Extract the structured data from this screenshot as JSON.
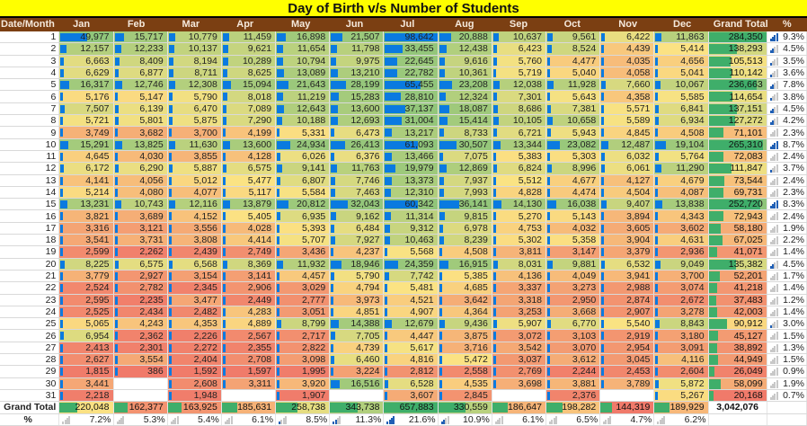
{
  "title": "Day of Birth v/s Number of Students",
  "columns": [
    "Date/Month",
    "Jan",
    "Feb",
    "Mar",
    "Apr",
    "May",
    "Jun",
    "Jul",
    "Aug",
    "Sep",
    "Oct",
    "Nov",
    "Dec",
    "Grand Total",
    "%"
  ],
  "rows": [
    {
      "day": "1",
      "values": [
        "49,977",
        "15,717",
        "10,779",
        "11,459",
        "16,898",
        "21,507",
        "98,642",
        "20,888",
        "10,637",
        "9,561",
        "6,422",
        "11,863"
      ],
      "total": "284,350",
      "pct": "9.3%"
    },
    {
      "day": "2",
      "values": [
        "12,157",
        "12,233",
        "10,137",
        "9,621",
        "11,654",
        "11,798",
        "33,455",
        "12,438",
        "6,423",
        "8,524",
        "4,439",
        "5,414"
      ],
      "total": "138,293",
      "pct": "4.5%"
    },
    {
      "day": "3",
      "values": [
        "6,663",
        "8,409",
        "8,194",
        "10,289",
        "10,794",
        "9,975",
        "22,645",
        "9,616",
        "5,760",
        "4,477",
        "4,035",
        "4,656"
      ],
      "total": "105,513",
      "pct": "3.5%"
    },
    {
      "day": "4",
      "values": [
        "6,629",
        "6,877",
        "8,711",
        "8,625",
        "13,089",
        "13,210",
        "22,782",
        "10,361",
        "5,719",
        "5,040",
        "4,058",
        "5,041"
      ],
      "total": "110,142",
      "pct": "3.6%"
    },
    {
      "day": "5",
      "values": [
        "16,317",
        "12,746",
        "12,308",
        "15,094",
        "21,643",
        "28,199",
        "65,455",
        "23,208",
        "12,038",
        "11,928",
        "7,660",
        "10,067"
      ],
      "total": "236,663",
      "pct": "7.8%"
    },
    {
      "day": "6",
      "values": [
        "5,176",
        "5,147",
        "5,790",
        "8,018",
        "11,219",
        "15,283",
        "28,810",
        "12,324",
        "7,301",
        "5,643",
        "4,358",
        "5,585"
      ],
      "total": "114,654",
      "pct": "3.8%"
    },
    {
      "day": "7",
      "values": [
        "7,507",
        "6,139",
        "6,470",
        "7,089",
        "12,643",
        "13,600",
        "37,137",
        "18,087",
        "8,686",
        "7,381",
        "5,571",
        "6,841"
      ],
      "total": "137,151",
      "pct": "4.5%"
    },
    {
      "day": "8",
      "values": [
        "5,721",
        "5,801",
        "5,875",
        "7,290",
        "10,188",
        "12,693",
        "31,004",
        "15,414",
        "10,105",
        "10,658",
        "5,589",
        "6,934"
      ],
      "total": "127,272",
      "pct": "4.2%"
    },
    {
      "day": "9",
      "values": [
        "3,749",
        "3,682",
        "3,700",
        "4,199",
        "5,331",
        "6,473",
        "13,217",
        "8,733",
        "6,721",
        "5,943",
        "4,845",
        "4,508"
      ],
      "total": "71,101",
      "pct": "2.3%"
    },
    {
      "day": "10",
      "values": [
        "15,291",
        "13,825",
        "11,630",
        "13,600",
        "24,934",
        "26,413",
        "61,093",
        "30,507",
        "13,344",
        "23,082",
        "12,487",
        "19,104"
      ],
      "total": "265,310",
      "pct": "8.7%"
    },
    {
      "day": "11",
      "values": [
        "4,645",
        "4,030",
        "3,855",
        "4,128",
        "6,026",
        "6,376",
        "13,466",
        "7,075",
        "5,383",
        "5,303",
        "6,032",
        "5,764"
      ],
      "total": "72,083",
      "pct": "2.4%"
    },
    {
      "day": "12",
      "values": [
        "6,172",
        "6,290",
        "5,887",
        "6,575",
        "9,141",
        "11,763",
        "19,979",
        "12,869",
        "6,824",
        "8,996",
        "6,061",
        "11,290"
      ],
      "total": "111,847",
      "pct": "3.7%"
    },
    {
      "day": "13",
      "values": [
        "4,141",
        "4,056",
        "5,012",
        "5,477",
        "6,807",
        "7,746",
        "13,373",
        "7,937",
        "5,512",
        "4,677",
        "4,127",
        "4,679"
      ],
      "total": "73,544",
      "pct": "2.4%"
    },
    {
      "day": "14",
      "values": [
        "5,214",
        "4,080",
        "4,077",
        "5,117",
        "5,584",
        "7,463",
        "12,310",
        "7,993",
        "4,828",
        "4,474",
        "4,504",
        "4,087"
      ],
      "total": "69,731",
      "pct": "2.3%"
    },
    {
      "day": "15",
      "values": [
        "13,231",
        "10,743",
        "12,116",
        "13,879",
        "20,812",
        "32,043",
        "60,342",
        "36,141",
        "14,130",
        "16,038",
        "9,407",
        "13,838"
      ],
      "total": "252,720",
      "pct": "8.3%"
    },
    {
      "day": "16",
      "values": [
        "3,821",
        "3,689",
        "4,152",
        "5,405",
        "6,935",
        "9,162",
        "11,314",
        "9,815",
        "5,270",
        "5,143",
        "3,894",
        "4,343"
      ],
      "total": "72,943",
      "pct": "2.4%"
    },
    {
      "day": "17",
      "values": [
        "3,316",
        "3,121",
        "3,556",
        "4,028",
        "5,393",
        "6,484",
        "9,312",
        "6,978",
        "4,753",
        "4,032",
        "3,605",
        "3,602"
      ],
      "total": "58,180",
      "pct": "1.9%"
    },
    {
      "day": "18",
      "values": [
        "3,541",
        "3,731",
        "3,808",
        "4,414",
        "5,707",
        "7,927",
        "10,463",
        "8,239",
        "5,302",
        "5,358",
        "3,904",
        "4,631"
      ],
      "total": "67,025",
      "pct": "2.2%"
    },
    {
      "day": "19",
      "values": [
        "2,599",
        "2,262",
        "2,439",
        "2,749",
        "3,436",
        "4,237",
        "5,568",
        "4,508",
        "3,811",
        "3,147",
        "3,379",
        "2,936"
      ],
      "total": "41,071",
      "pct": "1.4%"
    },
    {
      "day": "20",
      "values": [
        "8,225",
        "6,575",
        "6,568",
        "8,369",
        "11,932",
        "18,946",
        "24,359",
        "16,915",
        "8,031",
        "9,881",
        "6,532",
        "9,049"
      ],
      "total": "135,382",
      "pct": "4.5%"
    },
    {
      "day": "21",
      "values": [
        "3,779",
        "2,927",
        "3,154",
        "3,141",
        "4,457",
        "5,790",
        "7,742",
        "5,385",
        "4,136",
        "4,049",
        "3,941",
        "3,700"
      ],
      "total": "52,201",
      "pct": "1.7%"
    },
    {
      "day": "22",
      "values": [
        "2,524",
        "2,782",
        "2,345",
        "2,906",
        "3,029",
        "4,794",
        "5,481",
        "4,685",
        "3,337",
        "3,273",
        "2,988",
        "3,074"
      ],
      "total": "41,218",
      "pct": "1.4%"
    },
    {
      "day": "23",
      "values": [
        "2,595",
        "2,235",
        "3,477",
        "2,449",
        "2,777",
        "3,973",
        "4,521",
        "3,642",
        "3,318",
        "2,950",
        "2,874",
        "2,672"
      ],
      "total": "37,483",
      "pct": "1.2%"
    },
    {
      "day": "24",
      "values": [
        "2,525",
        "2,434",
        "2,482",
        "4,283",
        "3,051",
        "4,851",
        "4,907",
        "4,364",
        "3,253",
        "3,668",
        "2,907",
        "3,278"
      ],
      "total": "42,003",
      "pct": "1.4%"
    },
    {
      "day": "25",
      "values": [
        "5,065",
        "4,243",
        "4,353",
        "4,889",
        "8,799",
        "14,388",
        "12,679",
        "9,436",
        "5,907",
        "6,770",
        "5,540",
        "8,843"
      ],
      "total": "90,912",
      "pct": "3.0%"
    },
    {
      "day": "26",
      "values": [
        "6,954",
        "2,362",
        "2,226",
        "2,567",
        "2,717",
        "7,705",
        "4,447",
        "3,875",
        "3,072",
        "3,103",
        "2,919",
        "3,180"
      ],
      "total": "45,127",
      "pct": "1.5%"
    },
    {
      "day": "27",
      "values": [
        "2,413",
        "2,301",
        "2,272",
        "2,355",
        "2,822",
        "4,739",
        "5,617",
        "3,716",
        "3,542",
        "3,070",
        "2,954",
        "3,091"
      ],
      "total": "38,892",
      "pct": "1.3%"
    },
    {
      "day": "28",
      "values": [
        "2,627",
        "3,554",
        "2,404",
        "2,708",
        "3,098",
        "6,460",
        "4,816",
        "5,472",
        "3,037",
        "3,612",
        "3,045",
        "4,116"
      ],
      "total": "44,949",
      "pct": "1.5%"
    },
    {
      "day": "29",
      "values": [
        "1,815",
        "386",
        "1,592",
        "1,597",
        "1,995",
        "3,224",
        "2,812",
        "2,558",
        "2,769",
        "2,244",
        "2,453",
        "2,604"
      ],
      "total": "26,049",
      "pct": "0.9%"
    },
    {
      "day": "30",
      "values": [
        "3,441",
        "",
        "2,608",
        "3,311",
        "3,920",
        "16,516",
        "6,528",
        "4,535",
        "3,698",
        "3,881",
        "3,789",
        "5,872"
      ],
      "total": "58,099",
      "pct": "1.9%"
    },
    {
      "day": "31",
      "values": [
        "2,218",
        "",
        "1,948",
        "",
        "1,907",
        "",
        "3,607",
        "2,845",
        "",
        "2,376",
        "",
        "5,267"
      ],
      "total": "20,168",
      "pct": "0.7%"
    }
  ],
  "grand_total": {
    "label": "Grand Total",
    "values": [
      "220,048",
      "162,377",
      "163,925",
      "185,631",
      "258,738",
      "343,738",
      "657,883",
      "330,559",
      "186,647",
      "198,282",
      "144,319",
      "189,929"
    ],
    "total": "3,042,076"
  },
  "percent_row": {
    "label": "%",
    "values": [
      "7.2%",
      "5.3%",
      "5.4%",
      "6.1%",
      "8.5%",
      "11.3%",
      "21.6%",
      "10.9%",
      "6.1%",
      "6.5%",
      "4.7%",
      "6.2%"
    ]
  },
  "colors": {
    "title_bg": "#ffff00",
    "header_bg": "#7b3f12",
    "databar": "#0a7ae0",
    "total_bar": "#3fae6a",
    "high": "#8fc57a",
    "mid": "#fbe383",
    "low": "#f07a6a"
  }
}
